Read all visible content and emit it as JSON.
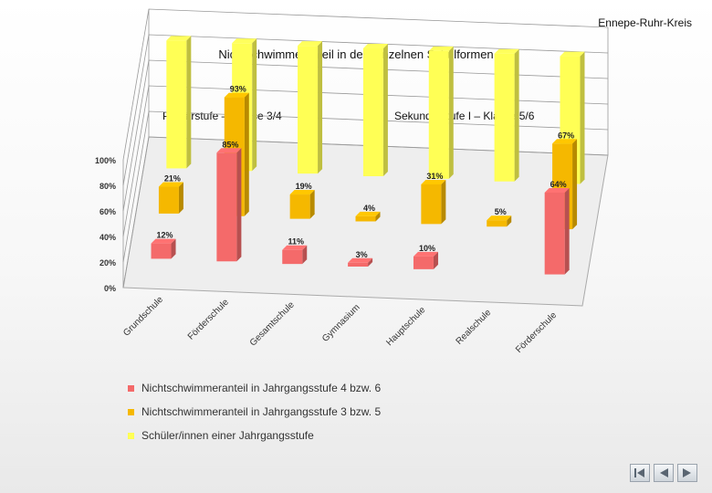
{
  "header": {
    "org": "Ennepe-Ruhr-Kreis",
    "title": "Nichtschwimmeranteil in den einzelnen Schulformen"
  },
  "sections": {
    "primary": "Primarstufe –  Klasse 3/4",
    "secondary": "Sekundarstufe I –  Klasse 5/6"
  },
  "colors": {
    "series1": "#f46a6a",
    "series2": "#f5b800",
    "series3": "#ffff55"
  },
  "chart_data": {
    "type": "bar",
    "title": "Nichtschwimmeranteil in den einzelnen Schulformen",
    "xlabel": "",
    "ylabel": "",
    "ylim": [
      0,
      100
    ],
    "y_ticks": [
      "0%",
      "20%",
      "40%",
      "60%",
      "80%",
      "100%"
    ],
    "categories": [
      "Grundschule",
      "Förderschule",
      "Gesamtschule",
      "Gymnasium",
      "Hauptschule",
      "Realschule",
      "Förderschule"
    ],
    "series": [
      {
        "name": "Nichtschwimmeranteil in Jahrgangsstufe 4 bzw. 6",
        "values": [
          12,
          85,
          11,
          3,
          10,
          null,
          64
        ],
        "labels": [
          "12%",
          "85%",
          "11%",
          "3%",
          "10%",
          "",
          "64%"
        ]
      },
      {
        "name": "Nichtschwimmeranteil in Jahrgangsstufe 3 bzw. 5",
        "values": [
          21,
          93,
          19,
          4,
          31,
          5,
          67
        ],
        "labels": [
          "21%",
          "93%",
          "19%",
          "4%",
          "31%",
          "5%",
          "67%"
        ]
      },
      {
        "name": "Schüler/innen einer Jahrgangsstufe",
        "values": [
          100,
          100,
          100,
          100,
          100,
          100,
          100
        ],
        "labels": [
          "",
          "",
          "",
          "",
          "",
          "",
          ""
        ]
      }
    ],
    "legend_position": "bottom-left",
    "grid": true
  },
  "nav": {
    "first": "first-slide",
    "prev": "previous-slide",
    "next": "next-slide"
  }
}
